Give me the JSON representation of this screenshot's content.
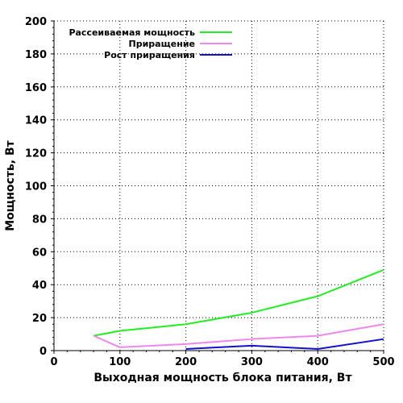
{
  "chart_data": {
    "type": "line",
    "title": "",
    "xlabel": "Выходная мощность блока питания, Вт",
    "ylabel": "Мощность, Вт",
    "xlim": [
      0,
      500
    ],
    "ylim": [
      0,
      200
    ],
    "x_ticks": [
      0,
      100,
      200,
      300,
      400,
      500
    ],
    "y_ticks": [
      0,
      20,
      40,
      60,
      80,
      100,
      120,
      140,
      160,
      180,
      200
    ],
    "grid": true,
    "legend_position": "top-left",
    "series": [
      {
        "name": "Рассеиваемая мощность",
        "color": "#22ee22",
        "x": [
          60,
          100,
          200,
          300,
          400,
          500
        ],
        "y": [
          9,
          12,
          16,
          23,
          33,
          49
        ]
      },
      {
        "name": "Приращение",
        "color": "#ee88ee",
        "x": [
          60,
          100,
          200,
          300,
          400,
          500
        ],
        "y": [
          9,
          2,
          4,
          7,
          9,
          16
        ]
      },
      {
        "name": "Рост приращения",
        "color": "#1111cc",
        "x": [
          200,
          300,
          400,
          500
        ],
        "y": [
          1,
          3,
          1,
          7
        ]
      }
    ]
  }
}
